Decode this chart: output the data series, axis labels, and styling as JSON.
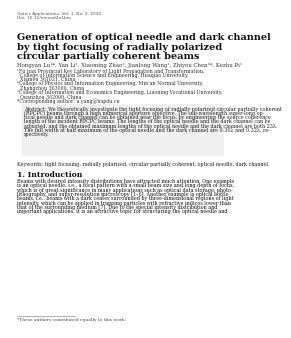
{
  "background_color": "#ffffff",
  "journal_line1": "Optics Applications, Vol. 1, No. 2, 2020",
  "journal_line2": "Doi: 10.11/omxad2o1bm",
  "title_lines": [
    "Generation of optical needle and dark channel",
    "by tight focusing of radially polarized",
    "circular partially coherent beams"
  ],
  "authors": "Hongyan Lu¹*, Yan Li¹, Xiaoming Zhao², Jianlong Wang¹, Zhiyou Chen¹*, Kezhu Pi¹",
  "affiliations": [
    "¹Fu jian Provincial Key Laboratory of Light Propagation and Transformation,",
    "  College of Information Science and Engineering, Huaqiao University,",
    "  Xiamen 361021, China",
    "²College of Physics and Information Engineering, Min’an Normal University,",
    "  Zhangzhou 363000, China",
    "³College of Information and Economics Engineering, Liaoning Vocational University,",
    "  Quanzhou 362000, China",
    "*Corresponding author: a.yang@hapdu.cn"
  ],
  "abstract_lines": [
    "We theoretically investigate the tight focusing of radially polarized circular partially coherent",
    "(RPCPC) beams through a high numerical aperture objective. The sub-wavelength super-long op-",
    "tical needle and dark channel can be obtained near the focus, by engineering the source coherence",
    "length of the incident RPCPC beams. The lengths of the optical needle and the dark channel can be",
    "adjusted, and the obtained maximum lengths of the optical needle and the dark channel are both 23λ.",
    "The full width at half maximum of the optical needle and the dark channel are 0.36λ and 0.32λ, re-",
    "spectively."
  ],
  "abstract_label": "Abstract:",
  "keywords_label": "Keywords:",
  "keywords_text": "tight focusing, radially polarized, circular partially coherent, optical needle, dark channel.",
  "section1": "1. Introduction",
  "intro_lines": [
    "Beams with desired intensity distributions have attracted much attention. One example",
    "is an optical needle, i.e., a focal pattern with a small beam size and long depth of focus,",
    "which is of great significance in many applications such as optical data storage, photo-",
    "lithography, and super-resolution microscopy [1–6]. Another example is optical bottle",
    "beams, i.e., beams with a dark center surrounded by three-dimensional regions of light",
    "intensity, which can be applied in trapping particles with refractive indices lower than",
    "that of the surrounding medium [7]. Due to the special intensity distribution and",
    "important applications, it is an attractive topic for structuring the optical needle and"
  ],
  "footnote": "*These authors contributed equally to this work."
}
